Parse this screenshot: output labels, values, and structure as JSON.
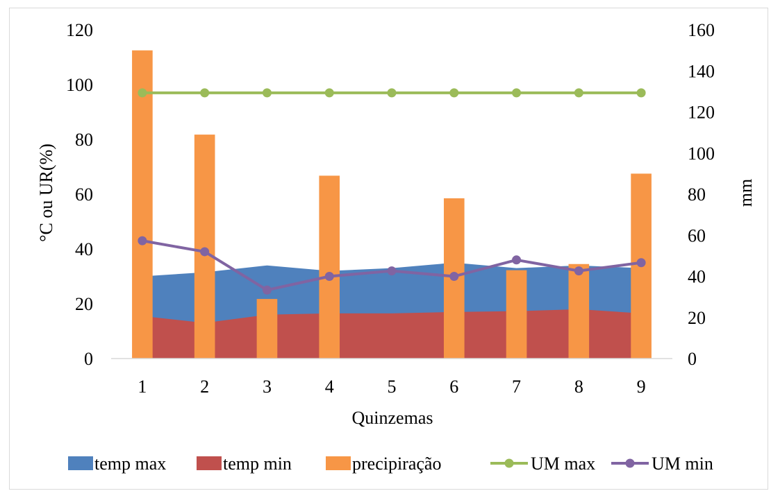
{
  "chart_data": {
    "type": "bar",
    "categories": [
      "1",
      "2",
      "3",
      "4",
      "5",
      "6",
      "7",
      "8",
      "9"
    ],
    "xlabel": "Quinzemas",
    "ylabel": "°C ou UR(%)",
    "y2label": "mm",
    "ylim": [
      0,
      120
    ],
    "y2lim": [
      0,
      160
    ],
    "yticks": [
      "0",
      "20",
      "40",
      "60",
      "80",
      "100",
      "120"
    ],
    "y2ticks": [
      "0",
      "20",
      "40",
      "60",
      "80",
      "100",
      "120",
      "140",
      "160"
    ],
    "grid": false,
    "legend_position": "bottom",
    "series": [
      {
        "name": "temp max",
        "kind": "area",
        "axis": "left",
        "color": "#4f81bd",
        "values": [
          30,
          31.5,
          34,
          32,
          33,
          35,
          33,
          34,
          33
        ]
      },
      {
        "name": "temp min",
        "kind": "area",
        "axis": "left",
        "color": "#c0504d",
        "values": [
          15.5,
          13,
          16,
          16.5,
          16.5,
          17,
          17.3,
          18,
          16.5
        ]
      },
      {
        "name": "precipiração",
        "kind": "bar",
        "axis": "right",
        "color": "#f79646",
        "values": [
          150,
          109,
          29,
          89,
          0,
          78,
          43,
          46,
          90
        ]
      },
      {
        "name": "UM max",
        "kind": "line",
        "axis": "left",
        "color": "#9bbb59",
        "values": [
          97,
          97,
          97,
          97,
          97,
          97,
          97,
          97,
          97
        ]
      },
      {
        "name": "UM min",
        "kind": "line",
        "axis": "left",
        "color": "#8064a2",
        "values": [
          43,
          39,
          25,
          30,
          32,
          30,
          36,
          32,
          35
        ]
      }
    ]
  }
}
